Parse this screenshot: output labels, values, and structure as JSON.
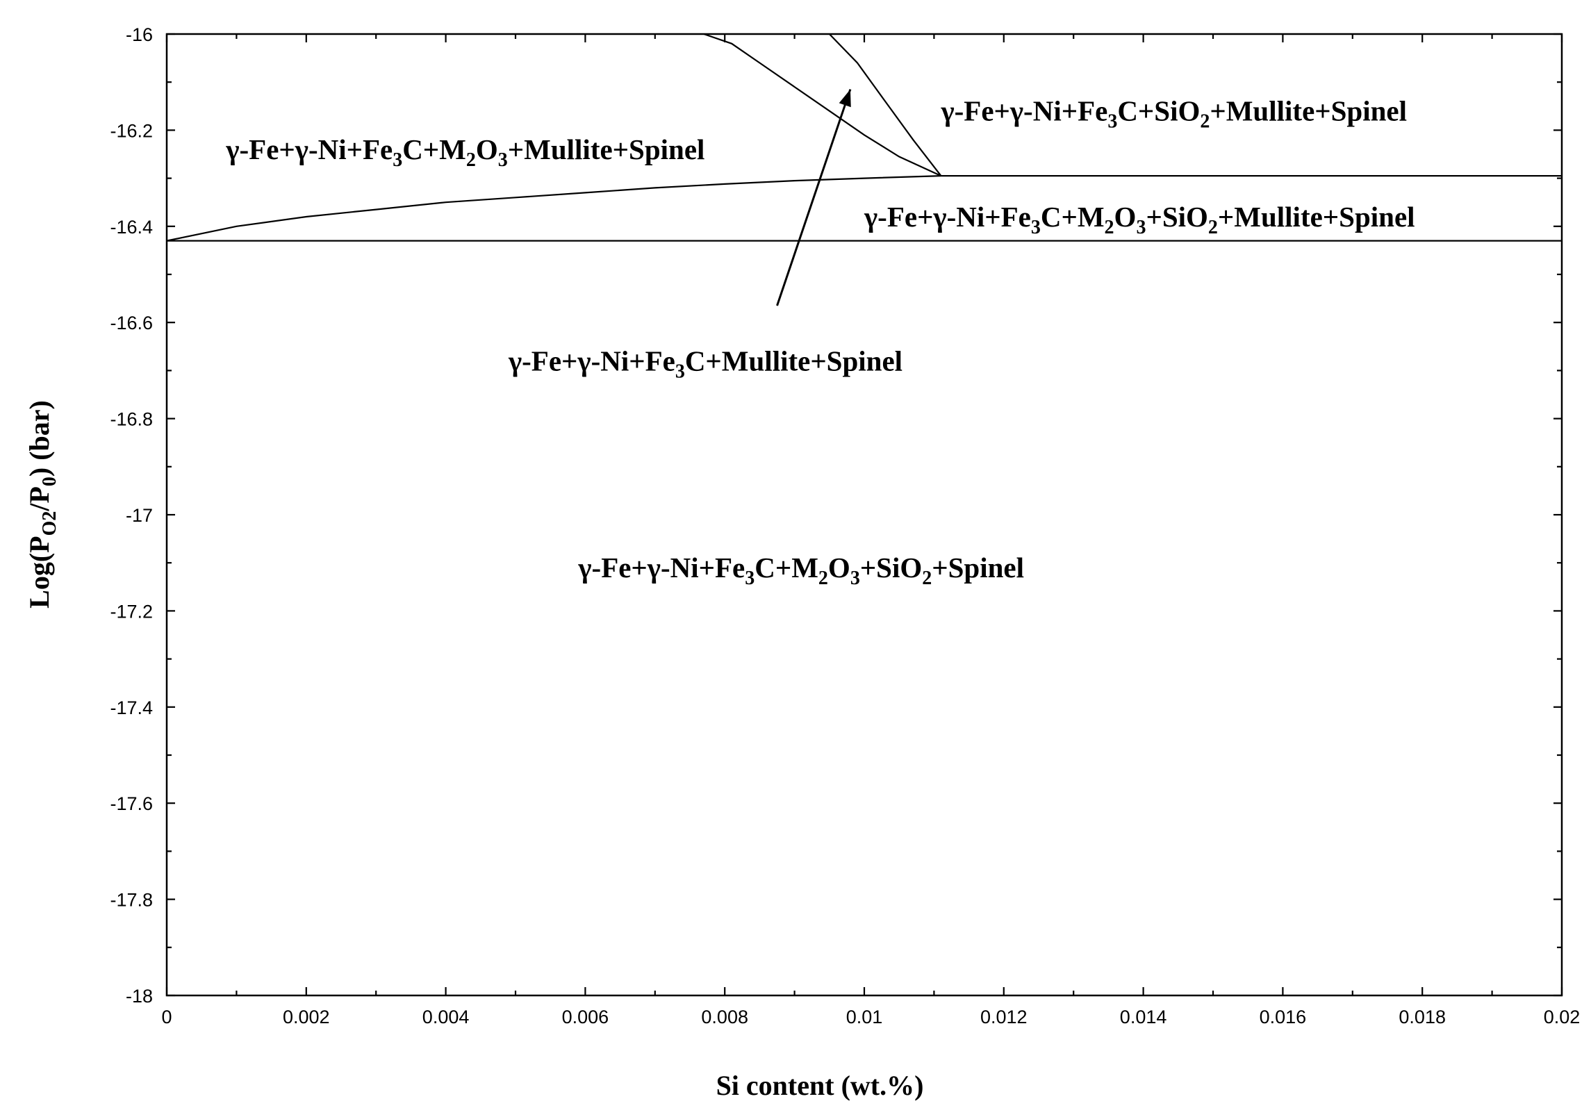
{
  "chart_data": {
    "type": "line",
    "xlabel": "Si content (wt.%)",
    "ylabel": "Log(P_O2/P_0) (bar)",
    "xlim": [
      0,
      0.02
    ],
    "ylim": [
      -18,
      -16
    ],
    "x_ticks": [
      "0",
      "0.002",
      "0.004",
      "0.006",
      "0.008",
      "0.01",
      "0.012",
      "0.014",
      "0.016",
      "0.018",
      "0.02"
    ],
    "y_ticks": [
      "-16",
      "-16.2",
      "-16.4",
      "-16.6",
      "-16.8",
      "-17",
      "-17.2",
      "-17.4",
      "-17.6",
      "-17.8",
      "-18"
    ],
    "grid": false,
    "series": [
      {
        "x": [
          0,
          0.001,
          0.002,
          0.003,
          0.004,
          0.005,
          0.006,
          0.007,
          0.008,
          0.009,
          0.01,
          0.0111
        ],
        "y": [
          -16.43,
          -16.4,
          -16.38,
          -16.365,
          -16.35,
          -16.34,
          -16.33,
          -16.32,
          -16.312,
          -16.305,
          -16.3,
          -16.295
        ]
      },
      {
        "x": [
          0.0111,
          0.02
        ],
        "y": [
          -16.295,
          -16.295
        ]
      },
      {
        "x": [
          0,
          0.02
        ],
        "y": [
          -16.43,
          -16.43
        ]
      },
      {
        "x": [
          0.0077,
          0.0081,
          0.0085,
          0.009,
          0.0095,
          0.01,
          0.0105,
          0.0111
        ],
        "y": [
          -16.0,
          -16.02,
          -16.06,
          -16.11,
          -16.16,
          -16.21,
          -16.255,
          -16.295
        ]
      },
      {
        "x": [
          0.0095,
          0.0099,
          0.0103,
          0.0107,
          0.0111
        ],
        "y": [
          -16.0,
          -16.06,
          -16.14,
          -16.22,
          -16.295
        ]
      }
    ],
    "annotations": [
      {
        "parts": [
          [
            "γ-Fe+γ-Ni+Fe",
            ""
          ],
          [
            "3",
            "sub"
          ],
          [
            "C+SiO",
            ""
          ],
          [
            "2",
            "sub"
          ],
          [
            "+Mullite+Spinel",
            ""
          ]
        ],
        "x": 0.0111,
        "y": -16.18
      },
      {
        "parts": [
          [
            "γ-Fe+γ-Ni+Fe",
            ""
          ],
          [
            "3",
            "sub"
          ],
          [
            "C+M",
            ""
          ],
          [
            "2",
            "sub"
          ],
          [
            "O",
            ""
          ],
          [
            "3",
            "sub"
          ],
          [
            "+Mullite+Spinel",
            ""
          ]
        ],
        "x": 0.00085,
        "y": -16.26
      },
      {
        "parts": [
          [
            "γ-Fe+γ-Ni+Fe",
            ""
          ],
          [
            "3",
            "sub"
          ],
          [
            "C+M",
            ""
          ],
          [
            "2",
            "sub"
          ],
          [
            "O",
            ""
          ],
          [
            "3",
            "sub"
          ],
          [
            "+SiO",
            ""
          ],
          [
            "2",
            "sub"
          ],
          [
            "+Mullite+Spinel",
            ""
          ]
        ],
        "x": 0.01,
        "y": -16.4
      },
      {
        "parts": [
          [
            "γ-Fe+γ-Ni+Fe",
            ""
          ],
          [
            "3",
            "sub"
          ],
          [
            "C+Mullite+Spinel",
            ""
          ]
        ],
        "x": 0.0049,
        "y": -16.7
      },
      {
        "parts": [
          [
            "γ-Fe+γ-Ni+Fe",
            ""
          ],
          [
            "3",
            "sub"
          ],
          [
            "C+M",
            ""
          ],
          [
            "2",
            "sub"
          ],
          [
            "O",
            ""
          ],
          [
            "3",
            "sub"
          ],
          [
            "+SiO",
            ""
          ],
          [
            "2",
            "sub"
          ],
          [
            "+Spinel",
            ""
          ]
        ],
        "x": 0.0059,
        "y": -17.13
      }
    ],
    "arrow": {
      "from": [
        0.00875,
        -16.565
      ],
      "to": [
        0.0098,
        -16.115
      ]
    }
  }
}
